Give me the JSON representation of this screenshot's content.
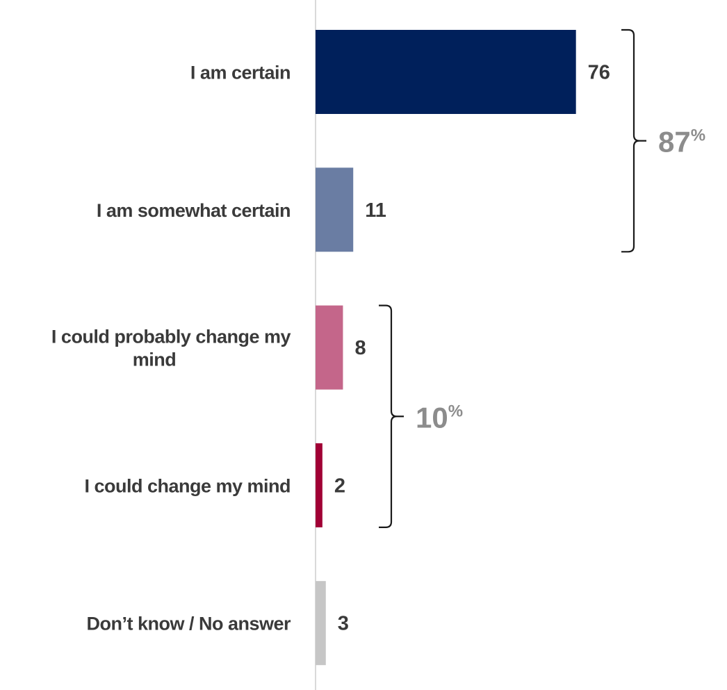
{
  "chart_data": {
    "type": "bar",
    "orientation": "horizontal",
    "categories": [
      "I am certain",
      "I am somewhat certain",
      "I could probably change my mind",
      "I could change my mind",
      "Don’t know / No answer"
    ],
    "values": [
      76,
      11,
      8,
      2,
      3
    ],
    "colors": [
      "#00205b",
      "#6a7da3",
      "#c4668a",
      "#a10035",
      "#c6c6c6"
    ],
    "xlim": [
      0,
      100
    ],
    "grid": false,
    "legend": "none",
    "groups": [
      {
        "label": "87",
        "unit": "%",
        "from_index": 0,
        "to_index": 1
      },
      {
        "label": "10",
        "unit": "%",
        "from_index": 2,
        "to_index": 3
      }
    ]
  }
}
